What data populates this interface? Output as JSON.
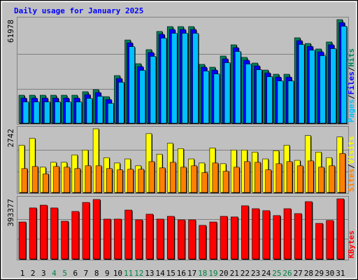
{
  "chart_data": [
    {
      "type": "bar",
      "title": "Daily usage for January 2025",
      "ylim": [
        0,
        61978
      ],
      "yticks": [
        61978
      ],
      "series": [
        {
          "name": "Hits",
          "color": "#00805c",
          "values": [
            16750,
            16750,
            16750,
            16750,
            16750,
            16750,
            18850,
            20100,
            15900,
            28500,
            49800,
            35600,
            44000,
            54900,
            57800,
            57800,
            57800,
            35200,
            33500,
            40200,
            46900,
            39400,
            36000,
            31800,
            29300,
            29300,
            51100,
            47700,
            44400,
            48600,
            61978
          ]
        },
        {
          "name": "Files",
          "color": "#0000ff",
          "values": [
            15050,
            15050,
            15050,
            15050,
            15050,
            15050,
            17150,
            18400,
            14200,
            26800,
            48100,
            33900,
            42300,
            53200,
            56100,
            56100,
            56100,
            33500,
            31800,
            38500,
            45200,
            37700,
            34300,
            30100,
            27600,
            27600,
            49400,
            46000,
            42700,
            46900,
            60200
          ]
        },
        {
          "name": "Pages",
          "color": "#00c0ff",
          "values": [
            12750,
            12750,
            12750,
            12750,
            12750,
            12750,
            14850,
            16100,
            11900,
            24500,
            45800,
            31600,
            40000,
            50900,
            53800,
            53800,
            53800,
            31200,
            29500,
            36200,
            42900,
            35400,
            32000,
            27800,
            25300,
            25300,
            47100,
            43700,
            40400,
            44600,
            58000
          ]
        }
      ]
    },
    {
      "type": "bar",
      "ylim": [
        0,
        2742
      ],
      "yticks": [
        2742
      ],
      "series": [
        {
          "name": "Visits",
          "color": "#ffff00",
          "values": [
            2035,
            2330,
            1090,
            1300,
            1300,
            1620,
            1830,
            2742,
            1500,
            1270,
            1445,
            1150,
            2535,
            1650,
            2120,
            1890,
            1445,
            1270,
            1915,
            1240,
            1830,
            1830,
            1740,
            1445,
            1800,
            2035,
            1385,
            2450,
            1740,
            1500,
            2390
          ]
        },
        {
          "name": "Sites",
          "color": "#ff8000",
          "values": [
            1030,
            1120,
            800,
            1120,
            1090,
            1030,
            1150,
            1150,
            1030,
            975,
            1000,
            1000,
            1330,
            1060,
            1300,
            1090,
            1150,
            855,
            1270,
            915,
            1090,
            1330,
            1300,
            975,
            1240,
            1330,
            1150,
            1360,
            1090,
            1150,
            1680
          ]
        }
      ]
    },
    {
      "type": "bar",
      "ylim": [
        0,
        393377
      ],
      "yticks": [
        393377
      ],
      "categories": [
        "1",
        "2",
        "3",
        "4",
        "5",
        "6",
        "7",
        "8",
        "9",
        "10",
        "11",
        "12",
        "13",
        "14",
        "15",
        "16",
        "17",
        "18",
        "19",
        "20",
        "21",
        "22",
        "23",
        "24",
        "25",
        "26",
        "27",
        "28",
        "29",
        "30",
        "31"
      ],
      "category_colors": [
        "#000000",
        "#000000",
        "#000000",
        "#008040",
        "#008040",
        "#000000",
        "#000000",
        "#000000",
        "#000000",
        "#000000",
        "#008040",
        "#008040",
        "#000000",
        "#000000",
        "#000000",
        "#000000",
        "#000000",
        "#008040",
        "#008040",
        "#000000",
        "#000000",
        "#000000",
        "#000000",
        "#000000",
        "#008040",
        "#008040",
        "#000000",
        "#000000",
        "#000000",
        "#000000",
        "#000000"
      ],
      "series": [
        {
          "name": "KBytes",
          "color": "#ff0000",
          "values": [
            242000,
            334000,
            352000,
            334000,
            247000,
            311000,
            370000,
            389000,
            261000,
            261000,
            320000,
            256000,
            293000,
            261000,
            279000,
            256000,
            256000,
            220000,
            242000,
            279000,
            275000,
            348000,
            329000,
            316000,
            284000,
            329000,
            297000,
            375000,
            233000,
            252000,
            393377
          ]
        }
      ]
    }
  ]
}
